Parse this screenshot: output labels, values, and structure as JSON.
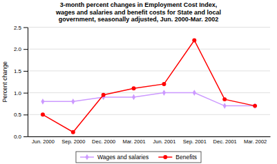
{
  "chart_data": {
    "type": "line",
    "title": "3-month percent changes in Employment Cost Index,\nwages and salaries and benefit costs for State and local\ngovernment, seasonally adjusted, Jun. 2000-Mar. 2002",
    "y_label": "Percent change",
    "categories": [
      "Jun. 2000",
      "Sep. 2000",
      "Dec. 2000",
      "Mar. 2001",
      "Jun. 2001",
      "Sep. 2001",
      "Dec. 2001",
      "Mar. 2002"
    ],
    "series": [
      {
        "name": "Wages and salaries",
        "color": "#cc99ff",
        "marker": "diamond",
        "line_style": "solid",
        "values": [
          0.8,
          0.8,
          0.9,
          0.9,
          1.0,
          1.0,
          0.7,
          0.7
        ]
      },
      {
        "name": "Benefits",
        "color": "#ff0000",
        "marker": "circle",
        "line_style": "solid",
        "values": [
          0.5,
          0.1,
          0.95,
          1.1,
          1.2,
          2.2,
          0.85,
          0.7
        ]
      }
    ],
    "ylim": [
      0.0,
      2.5
    ],
    "yticks": [
      {
        "value": 0.0,
        "label": "0.0"
      },
      {
        "value": 0.5,
        "label": "0.5"
      },
      {
        "value": 1.0,
        "label": "1.0"
      },
      {
        "value": 1.5,
        "label": "1.5"
      },
      {
        "value": 2.0,
        "label": "2.0"
      },
      {
        "value": 2.5,
        "label": "2.5"
      }
    ],
    "grid": true,
    "legend": "bottom"
  }
}
